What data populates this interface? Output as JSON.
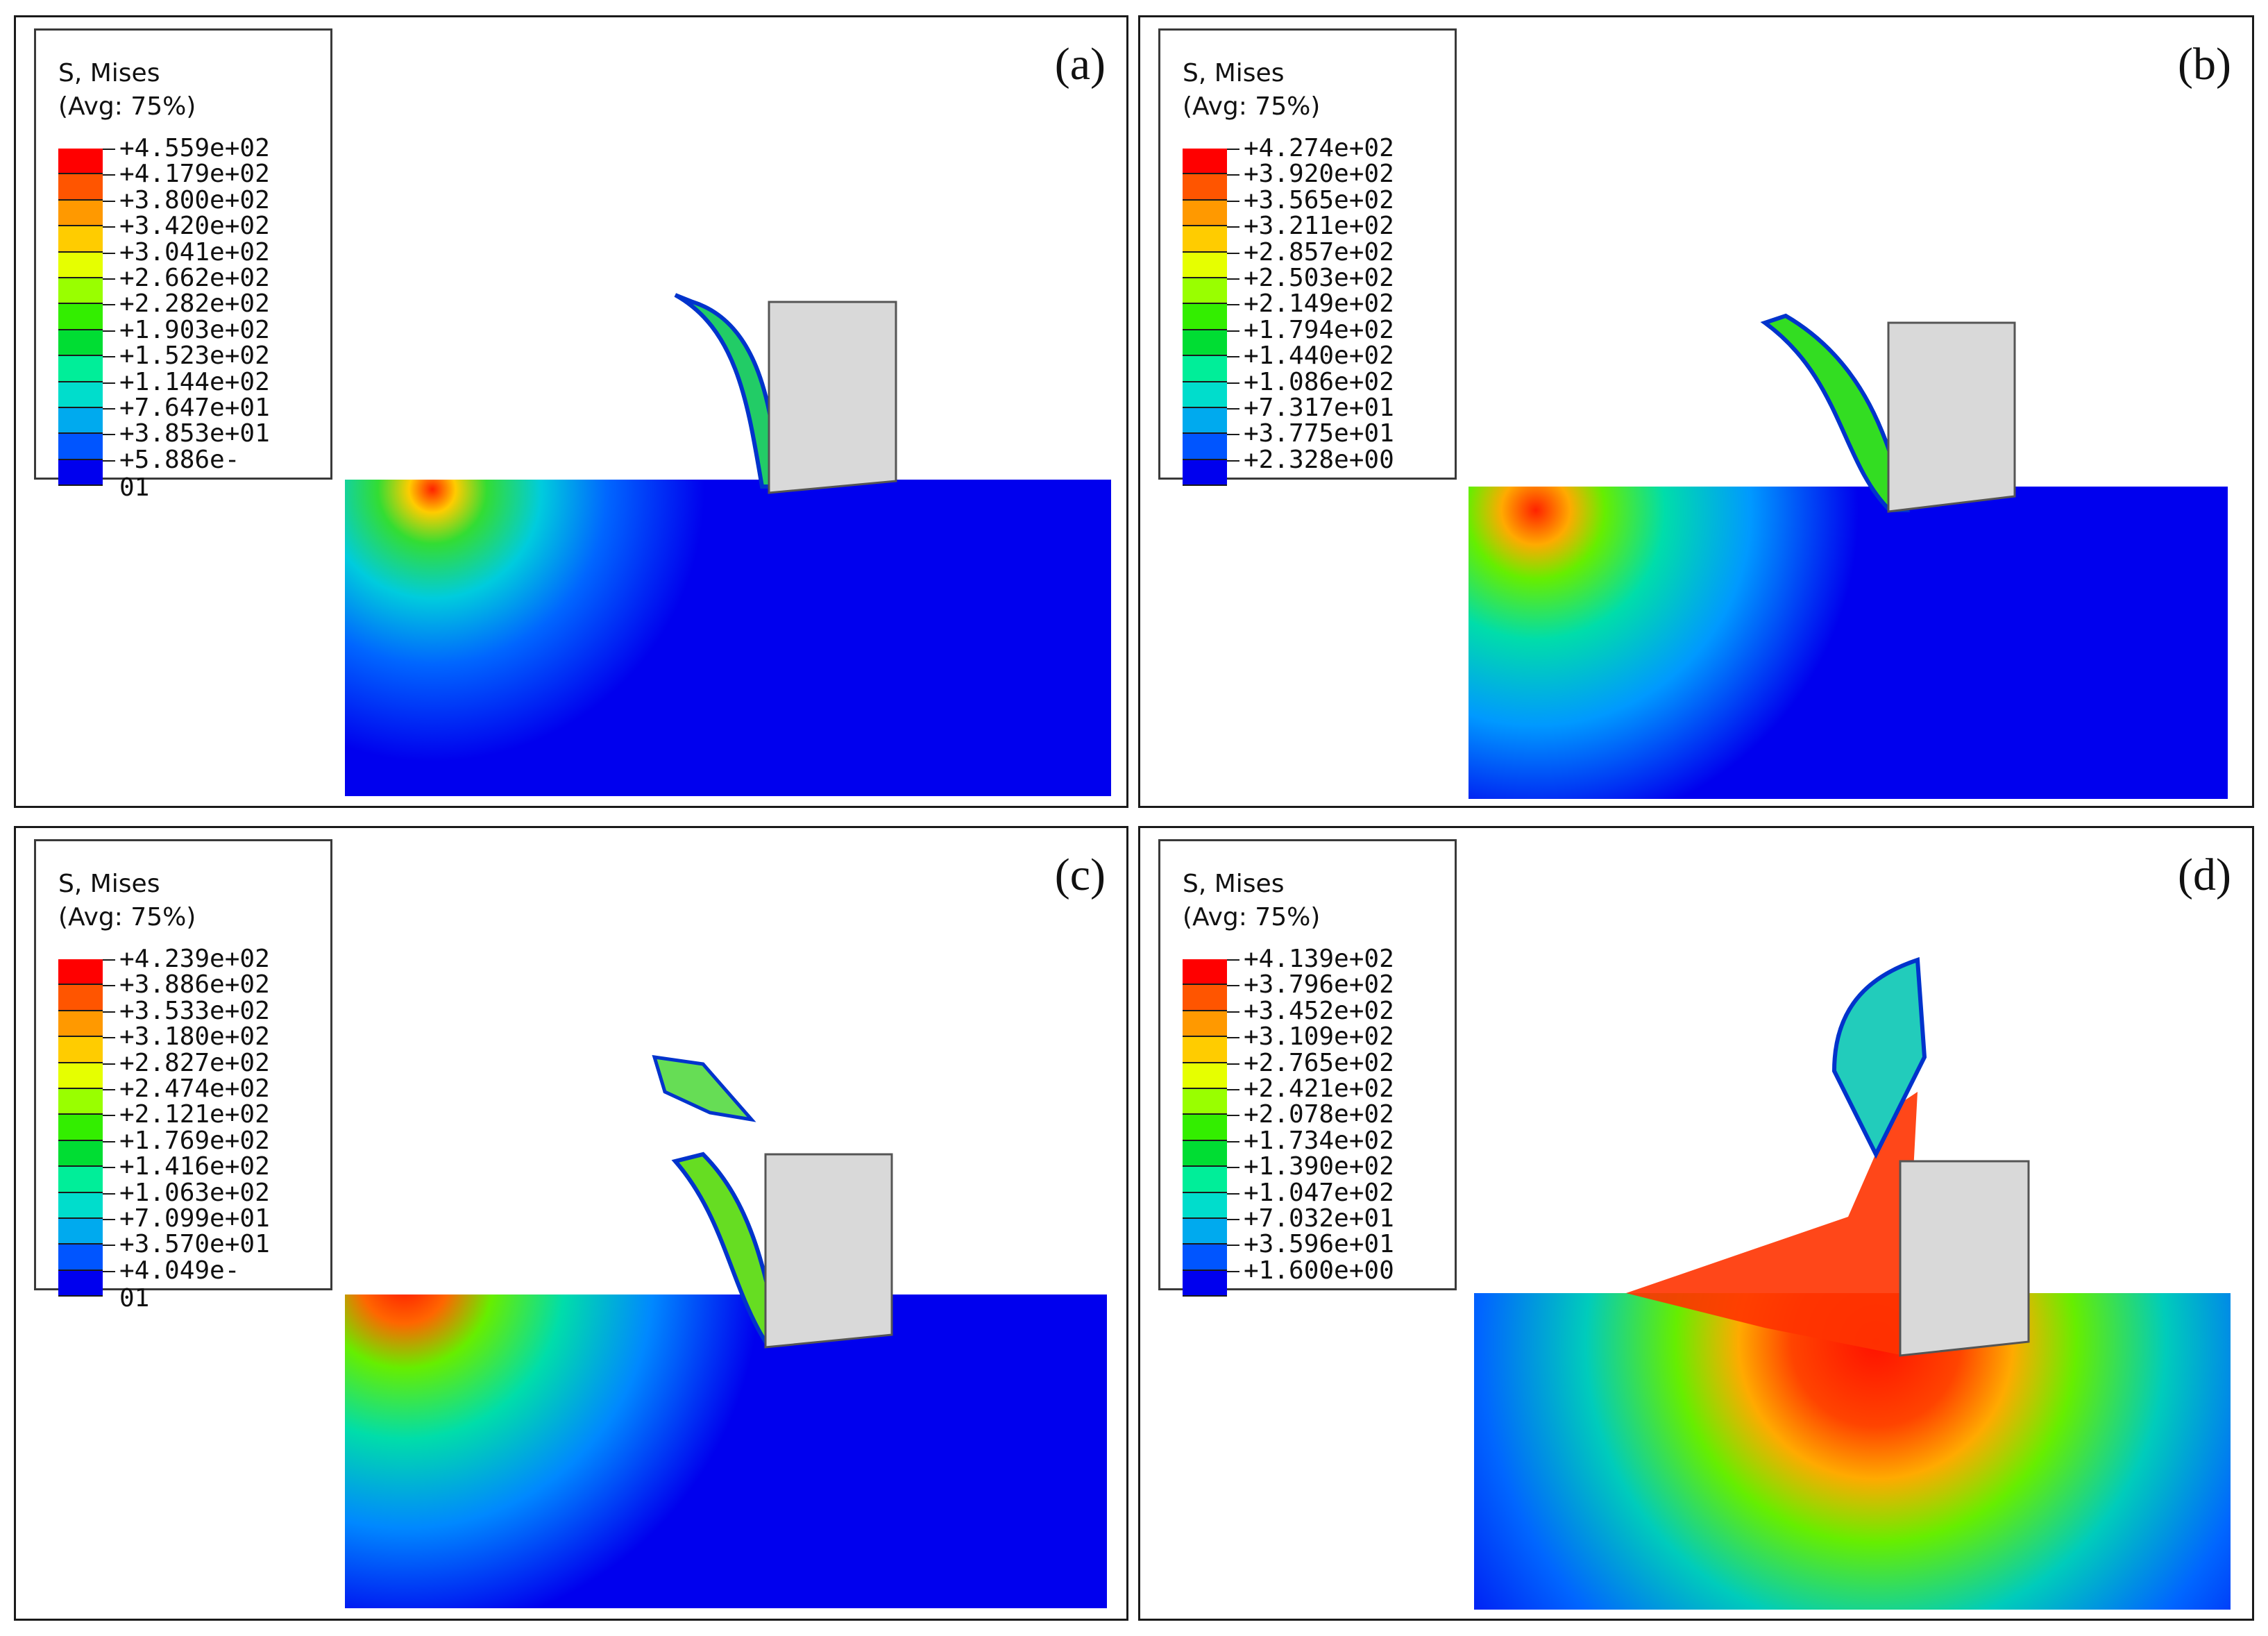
{
  "legend_title": "S, Mises",
  "legend_subtitle": "(Avg: 75%)",
  "colorbar": [
    "#ff0000",
    "#ff5500",
    "#ff9900",
    "#ffcc00",
    "#e6ff00",
    "#99ff00",
    "#33ee00",
    "#00dd33",
    "#00ee99",
    "#00ddcc",
    "#00aaee",
    "#0055ff",
    "#0000ee"
  ],
  "panels": [
    {
      "label": "(a)",
      "legend_values": [
        "+4.559e+02",
        "+4.179e+02",
        "+3.800e+02",
        "+3.420e+02",
        "+3.041e+02",
        "+2.662e+02",
        "+2.282e+02",
        "+1.903e+02",
        "+1.523e+02",
        "+1.144e+02",
        "+7.647e+01",
        "+3.853e+01",
        "+5.886e-01"
      ]
    },
    {
      "label": "(b)",
      "legend_values": [
        "+4.274e+02",
        "+3.920e+02",
        "+3.565e+02",
        "+3.211e+02",
        "+2.857e+02",
        "+2.503e+02",
        "+2.149e+02",
        "+1.794e+02",
        "+1.440e+02",
        "+1.086e+02",
        "+7.317e+01",
        "+3.775e+01",
        "+2.328e+00"
      ]
    },
    {
      "label": "(c)",
      "legend_values": [
        "+4.239e+02",
        "+3.886e+02",
        "+3.533e+02",
        "+3.180e+02",
        "+2.827e+02",
        "+2.474e+02",
        "+2.121e+02",
        "+1.769e+02",
        "+1.416e+02",
        "+1.063e+02",
        "+7.099e+01",
        "+3.570e+01",
        "+4.049e-01"
      ]
    },
    {
      "label": "(d)",
      "legend_values": [
        "+4.139e+02",
        "+3.796e+02",
        "+3.452e+02",
        "+3.109e+02",
        "+2.765e+02",
        "+2.421e+02",
        "+2.078e+02",
        "+1.734e+02",
        "+1.390e+02",
        "+1.047e+02",
        "+7.032e+01",
        "+3.596e+01",
        "+1.600e+00"
      ]
    }
  ]
}
